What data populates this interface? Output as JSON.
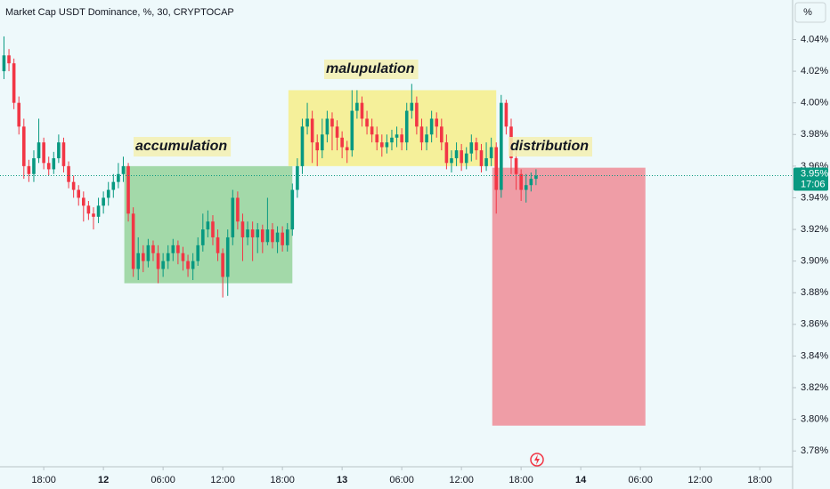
{
  "chart_data": {
    "type": "candlestick",
    "title": "Market Cap USDT Dominance, %, 30, CRYPTOCAP",
    "unit_label": "%",
    "up_color": "#089981",
    "down_color": "#f23645",
    "xlim": [
      13.6,
      93.3
    ],
    "ylim": [
      3.77,
      4.065
    ],
    "xticks": [
      {
        "value": 18,
        "label": "18:00"
      },
      {
        "value": 24,
        "label": "12"
      },
      {
        "value": 30,
        "label": "06:00"
      },
      {
        "value": 36,
        "label": "12:00"
      },
      {
        "value": 42,
        "label": "18:00"
      },
      {
        "value": 48,
        "label": "13"
      },
      {
        "value": 54,
        "label": "06:00"
      },
      {
        "value": 60,
        "label": "12:00"
      },
      {
        "value": 66,
        "label": "18:00"
      },
      {
        "value": 72,
        "label": "14"
      },
      {
        "value": 78,
        "label": "06:00"
      },
      {
        "value": 84,
        "label": "12:00"
      },
      {
        "value": 90,
        "label": "18:00"
      }
    ],
    "yticks": [
      {
        "value": 4.04,
        "label": "4.04%"
      },
      {
        "value": 4.02,
        "label": "4.02%"
      },
      {
        "value": 4.0,
        "label": "4.00%"
      },
      {
        "value": 3.98,
        "label": "3.98%"
      },
      {
        "value": 3.96,
        "label": "3.96%"
      },
      {
        "value": 3.94,
        "label": "3.94%"
      },
      {
        "value": 3.92,
        "label": "3.92%"
      },
      {
        "value": 3.9,
        "label": "3.90%"
      },
      {
        "value": 3.88,
        "label": "3.88%"
      },
      {
        "value": 3.86,
        "label": "3.86%"
      },
      {
        "value": 3.84,
        "label": "3.84%"
      },
      {
        "value": 3.82,
        "label": "3.82%"
      },
      {
        "value": 3.8,
        "label": "3.80%"
      },
      {
        "value": 3.78,
        "label": "3.78%"
      }
    ],
    "x": [
      14,
      14.5,
      15,
      15.5,
      16,
      16.5,
      17,
      17.5,
      18,
      18.5,
      19,
      19.5,
      20,
      20.5,
      21,
      21.5,
      22,
      22.5,
      23,
      23.5,
      24,
      24.5,
      25,
      25.5,
      26,
      26.5,
      27,
      27.5,
      28,
      28.5,
      29,
      29.5,
      30,
      30.5,
      31,
      31.5,
      32,
      32.5,
      33,
      33.5,
      34,
      34.5,
      35,
      35.5,
      36,
      36.5,
      37,
      37.5,
      38,
      38.5,
      39,
      39.5,
      40,
      40.5,
      41,
      41.5,
      42,
      42.5,
      43,
      43.5,
      44,
      44.5,
      45,
      45.5,
      46,
      46.5,
      47,
      47.5,
      48,
      48.5,
      49,
      49.5,
      50,
      50.5,
      51,
      51.5,
      52,
      52.5,
      53,
      53.5,
      54,
      54.5,
      55,
      55.5,
      56,
      56.5,
      57,
      57.5,
      58,
      58.5,
      59,
      59.5,
      60,
      60.5,
      61,
      61.5,
      62,
      62.5,
      63,
      63.5,
      64,
      64.5,
      65,
      65.5,
      66,
      66.5,
      67,
      67.5
    ],
    "open": [
      4.02,
      4.03,
      4.025,
      4.0,
      3.985,
      3.96,
      3.955,
      3.965,
      3.975,
      3.962,
      3.958,
      3.965,
      3.975,
      3.96,
      3.95,
      3.945,
      3.94,
      3.935,
      3.93,
      3.928,
      3.935,
      3.94,
      3.945,
      3.95,
      3.955,
      3.96,
      3.93,
      3.895,
      3.905,
      3.9,
      3.91,
      3.905,
      3.895,
      3.9,
      3.905,
      3.91,
      3.905,
      3.9,
      3.895,
      3.9,
      3.91,
      3.92,
      3.925,
      3.915,
      3.905,
      3.89,
      3.915,
      3.94,
      3.925,
      3.915,
      3.92,
      3.915,
      3.92,
      3.912,
      3.92,
      3.912,
      3.918,
      3.91,
      3.92,
      3.945,
      3.96,
      3.985,
      3.99,
      3.975,
      3.97,
      3.98,
      3.99,
      3.985,
      3.978,
      3.972,
      3.97,
      3.995,
      4.0,
      3.99,
      3.985,
      3.98,
      3.975,
      3.972,
      3.975,
      3.978,
      3.98,
      3.975,
      3.995,
      4.0,
      3.985,
      3.975,
      3.98,
      3.99,
      3.985,
      3.975,
      3.962,
      3.965,
      3.97,
      3.962,
      3.968,
      3.975,
      3.97,
      3.96,
      3.965,
      3.972,
      3.945,
      4.0,
      3.985,
      3.965,
      3.955,
      3.945,
      3.948,
      3.952
    ],
    "high": [
      4.042,
      4.034,
      4.028,
      4.004,
      3.99,
      3.964,
      3.97,
      3.99,
      3.978,
      3.966,
      3.969,
      3.98,
      3.978,
      3.963,
      3.954,
      3.948,
      3.944,
      3.938,
      3.934,
      3.94,
      3.944,
      3.95,
      3.955,
      3.962,
      3.966,
      3.962,
      3.934,
      3.915,
      3.91,
      3.914,
      3.913,
      3.91,
      3.905,
      3.91,
      3.914,
      3.913,
      3.909,
      3.904,
      3.905,
      3.915,
      3.93,
      3.932,
      3.929,
      3.92,
      3.908,
      3.92,
      3.945,
      3.944,
      3.93,
      3.925,
      3.925,
      3.924,
      3.923,
      3.94,
      3.924,
      3.922,
      3.922,
      3.924,
      3.949,
      3.965,
      3.99,
      4.0,
      3.995,
      3.98,
      3.99,
      3.995,
      3.994,
      3.989,
      3.982,
      3.976,
      4.008,
      4.008,
      4.004,
      3.995,
      3.99,
      3.985,
      3.98,
      3.98,
      3.983,
      3.985,
      3.984,
      4.0,
      4.012,
      4.004,
      3.99,
      3.985,
      3.995,
      3.994,
      3.99,
      3.98,
      3.97,
      3.975,
      3.974,
      3.972,
      3.98,
      3.978,
      3.974,
      3.975,
      3.978,
      3.975,
      4.005,
      4.002,
      3.99,
      3.97,
      3.958,
      3.955,
      3.956,
      3.958
    ],
    "low": [
      4.015,
      4.02,
      3.996,
      3.98,
      3.952,
      3.95,
      3.95,
      3.962,
      3.958,
      3.954,
      3.955,
      3.962,
      3.956,
      3.946,
      3.94,
      3.935,
      3.925,
      3.926,
      3.92,
      3.924,
      3.93,
      3.935,
      3.94,
      3.946,
      3.95,
      3.925,
      3.89,
      3.888,
      3.893,
      3.896,
      3.9,
      3.886,
      3.89,
      3.895,
      3.9,
      3.898,
      3.894,
      3.89,
      3.888,
      3.897,
      3.906,
      3.915,
      3.91,
      3.9,
      3.877,
      3.878,
      3.91,
      3.92,
      3.9,
      3.91,
      3.9,
      3.905,
      3.905,
      3.91,
      3.908,
      3.905,
      3.906,
      3.906,
      3.916,
      3.94,
      3.955,
      3.98,
      3.962,
      3.96,
      3.965,
      3.975,
      3.97,
      3.97,
      3.965,
      3.962,
      3.966,
      3.99,
      3.985,
      3.98,
      3.975,
      3.97,
      3.966,
      3.968,
      3.97,
      3.972,
      3.97,
      3.97,
      3.99,
      3.98,
      3.97,
      3.97,
      3.975,
      3.978,
      3.97,
      3.958,
      3.956,
      3.96,
      3.957,
      3.958,
      3.963,
      3.964,
      3.956,
      3.957,
      3.96,
      3.93,
      3.94,
      3.98,
      3.955,
      3.945,
      3.938,
      3.937,
      3.944,
      3.948
    ],
    "close": [
      4.03,
      4.025,
      4.0,
      3.985,
      3.96,
      3.955,
      3.965,
      3.975,
      3.962,
      3.958,
      3.965,
      3.975,
      3.96,
      3.95,
      3.945,
      3.94,
      3.935,
      3.93,
      3.928,
      3.935,
      3.94,
      3.945,
      3.95,
      3.955,
      3.96,
      3.93,
      3.895,
      3.905,
      3.9,
      3.91,
      3.905,
      3.895,
      3.9,
      3.905,
      3.91,
      3.905,
      3.9,
      3.895,
      3.9,
      3.91,
      3.92,
      3.925,
      3.915,
      3.905,
      3.89,
      3.915,
      3.94,
      3.925,
      3.915,
      3.92,
      3.915,
      3.92,
      3.912,
      3.92,
      3.912,
      3.918,
      3.91,
      3.92,
      3.945,
      3.96,
      3.985,
      3.99,
      3.975,
      3.97,
      3.98,
      3.99,
      3.985,
      3.978,
      3.972,
      3.97,
      3.995,
      4.0,
      3.99,
      3.985,
      3.98,
      3.975,
      3.972,
      3.975,
      3.978,
      3.98,
      3.975,
      3.995,
      4.0,
      3.985,
      3.975,
      3.98,
      3.99,
      3.985,
      3.975,
      3.962,
      3.965,
      3.97,
      3.962,
      3.968,
      3.975,
      3.97,
      3.96,
      3.965,
      3.972,
      3.945,
      4.0,
      3.985,
      3.965,
      3.955,
      3.945,
      3.948,
      3.952,
      3.954
    ],
    "zones": [
      {
        "label": "accumulation",
        "x": [
          26.1,
          43.0
        ],
        "y": [
          3.886,
          3.96
        ],
        "color": "#a3d9a9"
      },
      {
        "label": "malupulation",
        "x": [
          42.6,
          63.5
        ],
        "y": [
          3.96,
          4.008
        ],
        "color": "#f5f09a"
      },
      {
        "label": "distribution",
        "x": [
          63.1,
          78.5
        ],
        "y": [
          3.796,
          3.959
        ],
        "color": "#ef9da6"
      }
    ],
    "last_price": {
      "value": 3.954,
      "label": "3.95%",
      "countdown": "17:06",
      "color": "#089981"
    }
  }
}
